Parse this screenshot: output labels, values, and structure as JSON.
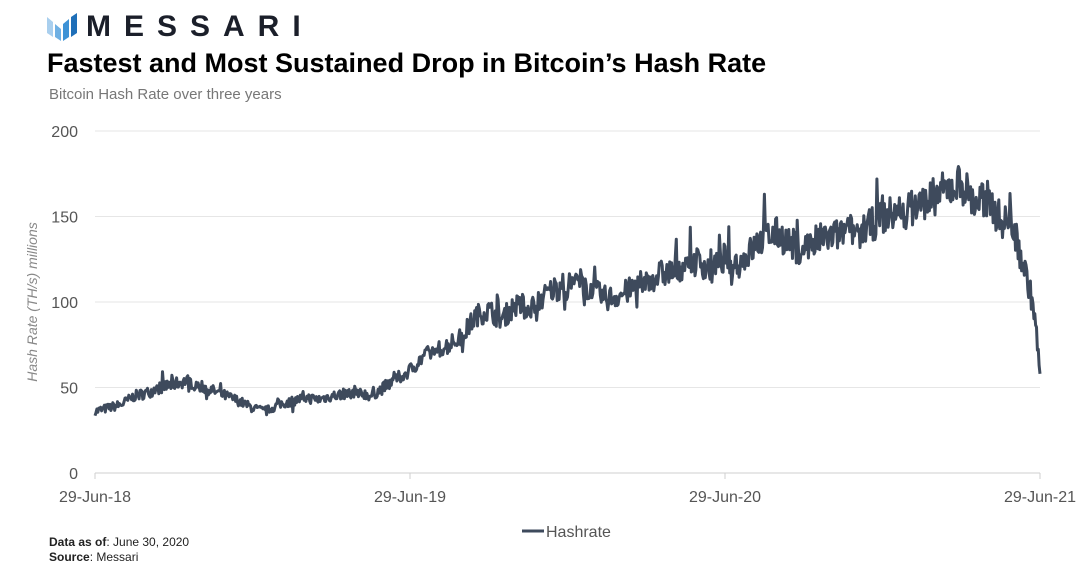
{
  "brand": {
    "name": "MESSARI",
    "logo_icon": "messari-logo-icon"
  },
  "header": {
    "title": "Fastest and Most Sustained Drop in Bitcoin’s Hash Rate",
    "subtitle": "Bitcoin Hash Rate over three years"
  },
  "footer": {
    "data_as_of_label": "Data as of",
    "data_as_of_value": ": June 30, 2020",
    "source_label": "Source",
    "source_value": ": Messari"
  },
  "colors": {
    "line": "#3e4a5c",
    "grid": "#e6e6e6",
    "axis": "#cfcfcf",
    "text": "#555555"
  },
  "chart_data": {
    "type": "line",
    "title": "Fastest and Most Sustained Drop in Bitcoin’s Hash Rate",
    "subtitle": "Bitcoin Hash Rate over three years",
    "xlabel": "",
    "ylabel": "Hash Rate (TH/s) millions",
    "ylim": [
      0,
      200
    ],
    "xlim": [
      0,
      36
    ],
    "yticks": [
      0,
      50,
      100,
      150,
      200
    ],
    "xticks": [
      {
        "value": 0,
        "label": "29-Jun-18"
      },
      {
        "value": 12,
        "label": "29-Jun-19"
      },
      {
        "value": 24,
        "label": "29-Jun-20"
      },
      {
        "value": 36,
        "label": "29-Jun-21"
      }
    ],
    "grid": true,
    "legend": {
      "position": "bottom-center"
    },
    "x_unit": "months since 29-Jun-18",
    "series": [
      {
        "name": "Hashrate",
        "x": [
          0,
          0.5,
          1,
          1.5,
          2,
          2.5,
          3,
          3.5,
          4,
          4.5,
          5,
          5.5,
          6,
          6.5,
          7,
          7.5,
          8,
          8.5,
          9,
          9.5,
          10,
          10.5,
          11,
          11.5,
          12,
          12.5,
          13,
          13.5,
          14,
          14.5,
          15,
          15.5,
          16,
          16.5,
          17,
          17.5,
          18,
          18.5,
          19,
          19.5,
          20,
          20.5,
          21,
          21.5,
          22,
          22.5,
          23,
          23.5,
          24,
          24.5,
          25,
          25.5,
          26,
          26.5,
          27,
          27.5,
          28,
          28.5,
          29,
          29.5,
          30,
          30.5,
          31,
          31.5,
          32,
          32.5,
          33,
          33.5,
          34,
          34.5,
          35,
          35.2,
          35.4,
          35.6,
          35.8,
          36
        ],
        "values": [
          36,
          38,
          40,
          45,
          47,
          50,
          52,
          54,
          51,
          48,
          45,
          42,
          38,
          36,
          40,
          42,
          44,
          43,
          45,
          46,
          48,
          45,
          50,
          55,
          60,
          68,
          72,
          75,
          80,
          92,
          95,
          90,
          98,
          96,
          102,
          108,
          110,
          112,
          106,
          102,
          104,
          108,
          112,
          116,
          118,
          122,
          124,
          118,
          126,
          122,
          130,
          138,
          140,
          134,
          132,
          136,
          138,
          140,
          142,
          144,
          150,
          152,
          154,
          158,
          162,
          166,
          170,
          158,
          160,
          148,
          145,
          130,
          120,
          108,
          92,
          58
        ]
      }
    ]
  }
}
